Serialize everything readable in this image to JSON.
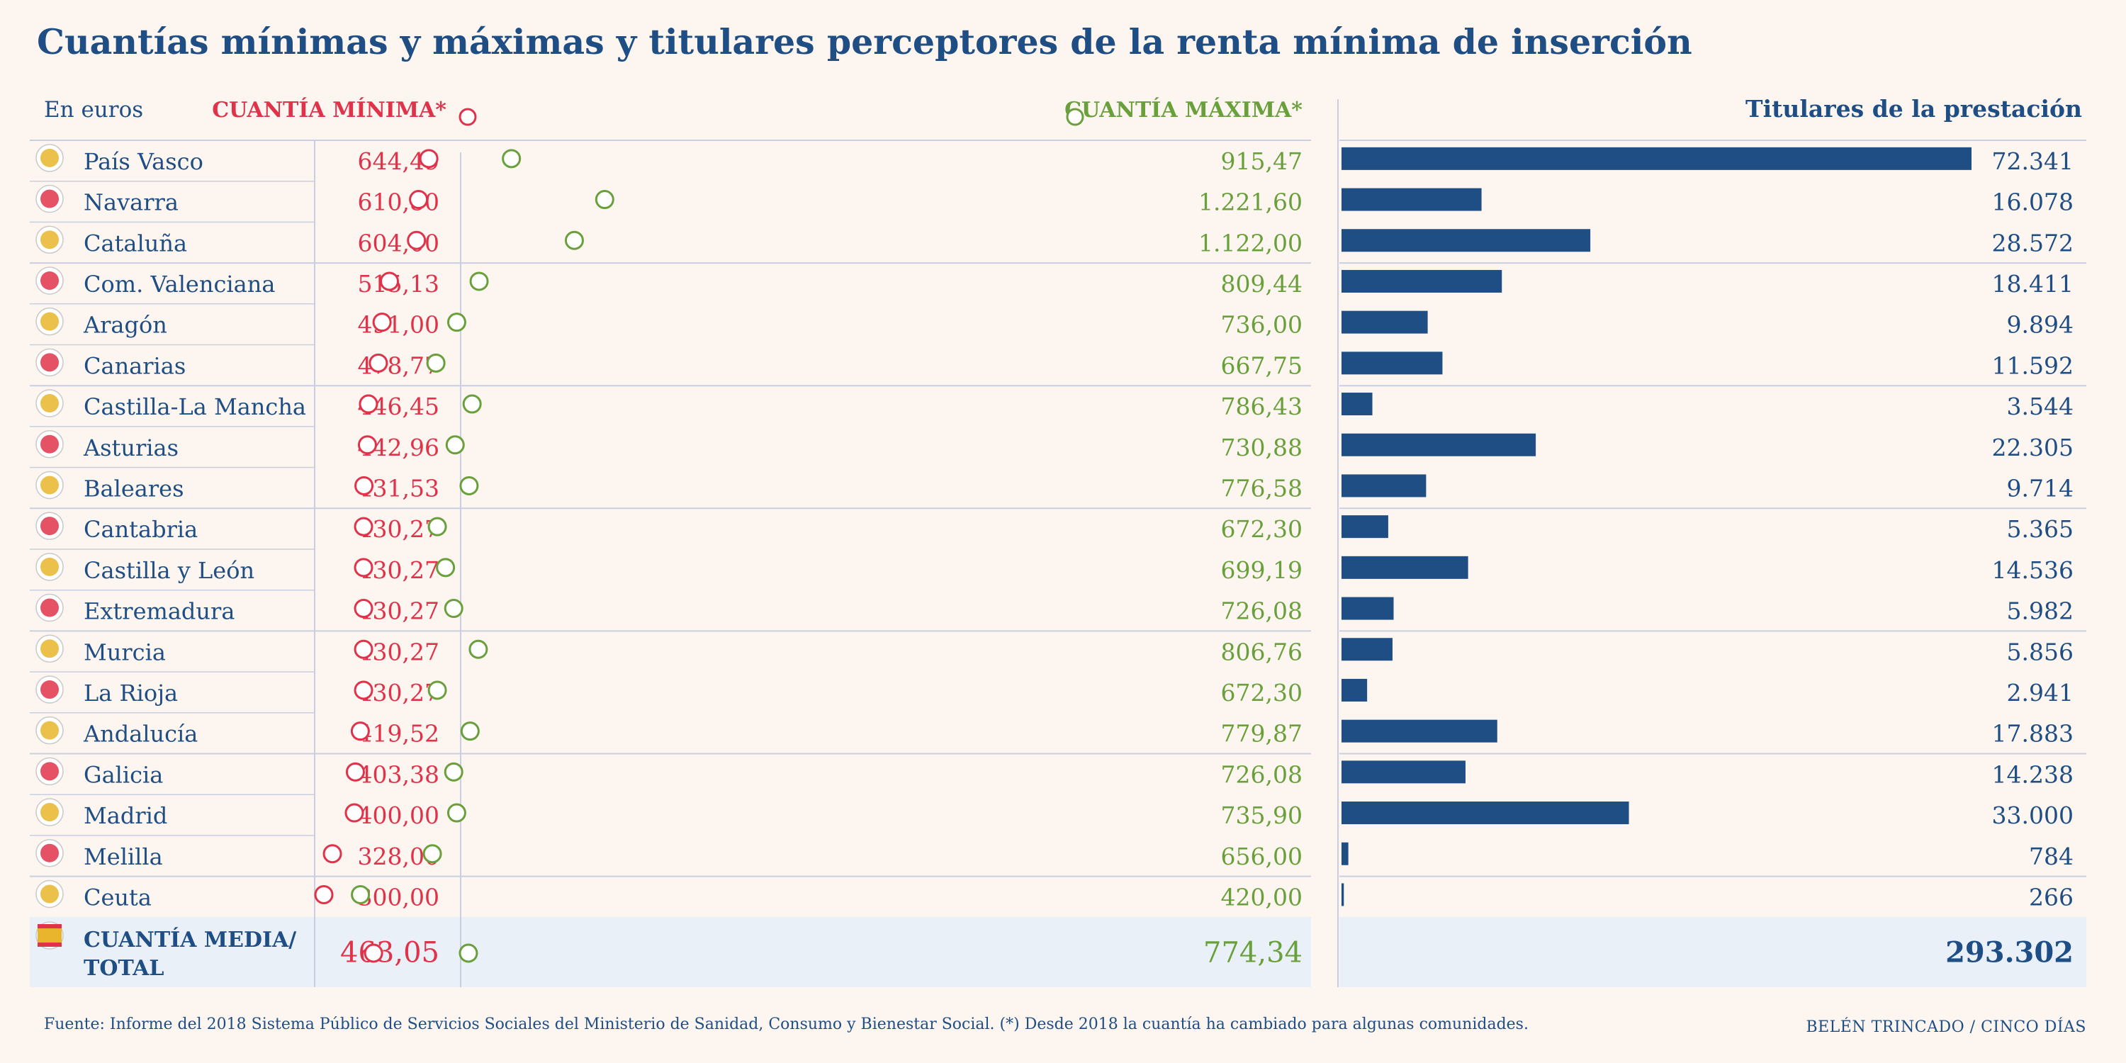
{
  "title": "Cuantías mínimas y máximas y titulares perceptores de la renta mínima de inserción",
  "header": {
    "units": "En euros",
    "min_label": "CUANTÍA MÍNIMA*",
    "max_label": "CUANTÍA MÁXIMA*",
    "recipients_label": "Titulares de la prestación"
  },
  "colors": {
    "background": "#fdf5ef",
    "navy": "#1f4e85",
    "min_red": "#e0334a",
    "max_green": "#6aa03c",
    "track": "#eaeff6",
    "total_row_bg": "#eaf0f7",
    "divider": "#c9cfe0"
  },
  "chart_data": [
    {
      "type": "dumbbell",
      "title": "",
      "unit": "euros",
      "xlim": [
        0,
        1350
      ],
      "categories": [
        "País Vasco",
        "Navarra",
        "Cataluña",
        "Com. Valenciana",
        "Aragón",
        "Canarias",
        "Castilla-La Mancha",
        "Asturias",
        "Baleares",
        "Cantabria",
        "Castilla y León",
        "Extremadura",
        "Murcia",
        "La Rioja",
        "Andalucía",
        "Galicia",
        "Madrid",
        "Melilla",
        "Ceuta"
      ],
      "flag_icons": [
        "basque-flag-icon",
        "navarra-flag-icon",
        "catalonia-flag-icon",
        "valencia-flag-icon",
        "aragon-flag-icon",
        "canarias-flag-icon",
        "castilla-la-mancha-flag-icon",
        "asturias-flag-icon",
        "baleares-flag-icon",
        "cantabria-flag-icon",
        "castilla-y-leon-flag-icon",
        "extremadura-flag-icon",
        "murcia-flag-icon",
        "la-rioja-flag-icon",
        "andalucia-flag-icon",
        "galicia-flag-icon",
        "madrid-flag-icon",
        "melilla-flag-icon",
        "ceuta-flag-icon"
      ],
      "series": [
        {
          "name": "CUANTÍA MÍNIMA*",
          "values": [
            644.49,
            610.8,
            604.0,
            515.13,
            491.0,
            478.77,
            446.45,
            442.96,
            431.53,
            430.27,
            430.27,
            430.27,
            430.27,
            430.27,
            419.52,
            403.38,
            400.0,
            328.0,
            300.0
          ]
        },
        {
          "name": "CUANTÍA MÁXIMA*",
          "values": [
            915.47,
            1221.6,
            1122.0,
            809.44,
            736.0,
            667.75,
            786.43,
            730.88,
            776.58,
            672.3,
            699.19,
            726.08,
            806.76,
            672.3,
            779.87,
            726.08,
            735.9,
            656.0,
            420.0
          ]
        }
      ],
      "labels_min": [
        "644,49",
        "610,80",
        "604,00",
        "515,13",
        "491,00",
        "478,77",
        "446,45",
        "442,96",
        "431,53",
        "430,27",
        "430,27",
        "430,27",
        "430,27",
        "430,27",
        "419,52",
        "403,38",
        "400,00",
        "328,00",
        "300,00"
      ],
      "labels_max": [
        "915,47",
        "1.221,60",
        "1.122,00",
        "809,44",
        "736,00",
        "667,75",
        "786,43",
        "730,88",
        "776,58",
        "672,30",
        "699,19",
        "726,08",
        "806,76",
        "672,30",
        "779,87",
        "726,08",
        "735,90",
        "656,00",
        "420,00"
      ],
      "total": {
        "label": "CUANTÍA MEDIA/ TOTAL",
        "icon": "spain-flag-icon",
        "min": 463.05,
        "max": 774.34,
        "min_label": "463,05",
        "max_label": "774,34"
      }
    },
    {
      "type": "bar",
      "title": "Titulares de la prestación",
      "categories": [
        "País Vasco",
        "Navarra",
        "Cataluña",
        "Com. Valenciana",
        "Aragón",
        "Canarias",
        "Castilla-La Mancha",
        "Asturias",
        "Baleares",
        "Cantabria",
        "Castilla y León",
        "Extremadura",
        "Murcia",
        "La Rioja",
        "Andalucía",
        "Galicia",
        "Madrid",
        "Melilla",
        "Ceuta"
      ],
      "values": [
        72341,
        16078,
        28572,
        18411,
        9894,
        11592,
        3544,
        22305,
        9714,
        5365,
        14536,
        5982,
        5856,
        2941,
        17883,
        14238,
        33000,
        784,
        266
      ],
      "value_labels": [
        "72.341",
        "16.078",
        "28.572",
        "18.411",
        "9.894",
        "11.592",
        "3.544",
        "22.305",
        "9.714",
        "5.365",
        "14.536",
        "5.982",
        "5.856",
        "2.941",
        "17.883",
        "14.238",
        "33.000",
        "784",
        "266"
      ],
      "xlim": [
        0,
        72341
      ],
      "total": 293302,
      "total_label": "293.302"
    }
  ],
  "footer": {
    "source": "Fuente: Informe del 2018 Sistema Público de Servicios Sociales del Ministerio de Sanidad, Consumo y Bienestar Social. (*) Desde 2018 la cuantía ha cambiado para algunas comunidades.",
    "credit": "BELÉN TRINCADO / CINCO DÍAS"
  }
}
